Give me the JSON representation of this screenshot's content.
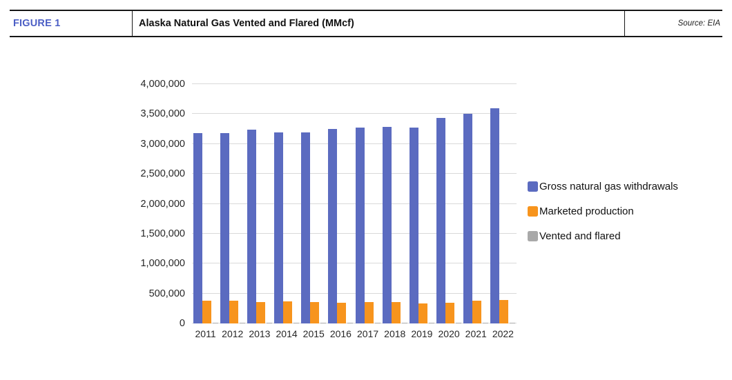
{
  "header": {
    "figure_label": "FIGURE 1",
    "figure_label_color": "#4B5EC5",
    "title": "Alaska Natural Gas Vented and Flared (MMcf)",
    "source": "Source: EIA"
  },
  "chart_data": {
    "type": "bar",
    "categories": [
      "2011",
      "2012",
      "2013",
      "2014",
      "2015",
      "2016",
      "2017",
      "2018",
      "2019",
      "2020",
      "2021",
      "2022"
    ],
    "series": [
      {
        "name": "Gross natural gas withdrawals",
        "color": "#5B6BC0",
        "values": [
          3180000,
          3180000,
          3240000,
          3190000,
          3190000,
          3250000,
          3270000,
          3285000,
          3270000,
          3440000,
          3505000,
          3600000
        ]
      },
      {
        "name": "Marketed production",
        "color": "#F7941D",
        "values": [
          375000,
          375000,
          360000,
          365000,
          360000,
          345000,
          360000,
          360000,
          335000,
          350000,
          375000,
          395000
        ]
      },
      {
        "name": "Vented and flared",
        "color": "#A9A9A9",
        "values": [
          15000,
          15000,
          15000,
          15000,
          15000,
          15000,
          15000,
          15000,
          15000,
          15000,
          15000,
          15000
        ]
      }
    ],
    "title": "Alaska Natural Gas Vented and Flared (MMcf)",
    "xlabel": "",
    "ylabel": "",
    "ylim": [
      0,
      4000000
    ],
    "ytick_step": 500000,
    "ytick_labels": [
      "0",
      "500,000",
      "1,000,000",
      "1,500,000",
      "2,000,000",
      "2,500,000",
      "3,000,000",
      "3,500,000",
      "4,000,000"
    ],
    "grid": true,
    "legend_position": "right"
  }
}
